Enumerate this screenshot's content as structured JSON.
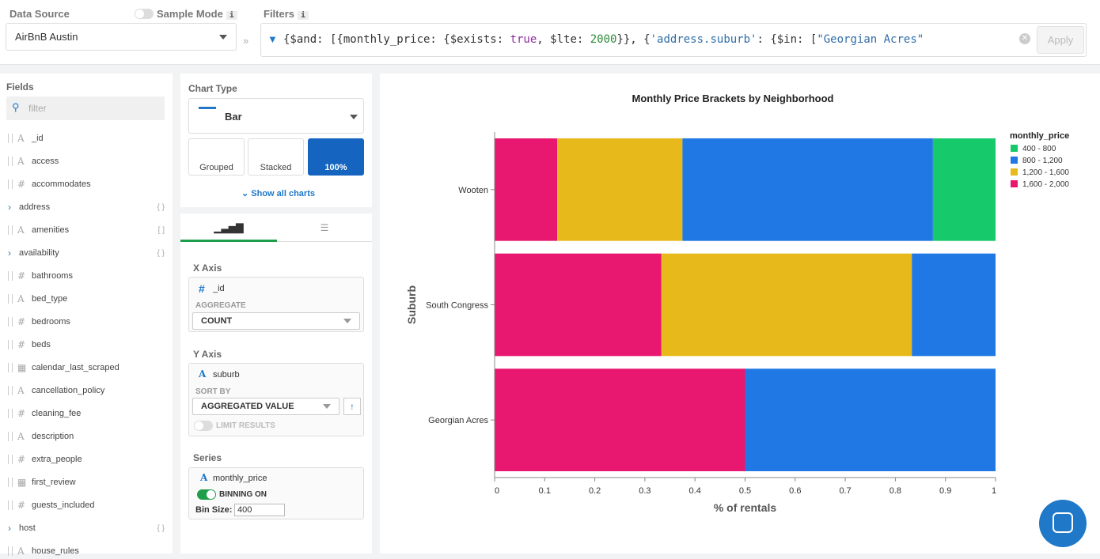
{
  "header": {
    "data_source_label": "Data Source",
    "sample_mode_label": "Sample Mode",
    "info": "i",
    "data_source_value": "AirBnB Austin",
    "filters_label": "Filters",
    "apply_label": "Apply",
    "filter_parts": [
      {
        "t": "{$and: [{monthly_price: {$exists: ",
        "c": "#333"
      },
      {
        "t": "true",
        "c": "#8e2a9e"
      },
      {
        "t": ", $lte: ",
        "c": "#333"
      },
      {
        "t": "2000",
        "c": "#2e8b3a"
      },
      {
        "t": "}}, {",
        "c": "#333"
      },
      {
        "t": "'address.suburb'",
        "c": "#2f6da8"
      },
      {
        "t": ": {$in: [",
        "c": "#333"
      },
      {
        "t": "\"Georgian Acres\"",
        "c": "#2f6da8"
      }
    ]
  },
  "fields": {
    "title": "Fields",
    "filter_placeholder": "filter",
    "items": [
      {
        "name": "_id",
        "type": "string"
      },
      {
        "name": "access",
        "type": "string"
      },
      {
        "name": "accommodates",
        "type": "number"
      },
      {
        "name": "address",
        "type": "object",
        "tag": "{ }"
      },
      {
        "name": "amenities",
        "type": "string",
        "tag": "[ ]"
      },
      {
        "name": "availability",
        "type": "object",
        "tag": "{ }"
      },
      {
        "name": "bathrooms",
        "type": "number"
      },
      {
        "name": "bed_type",
        "type": "string"
      },
      {
        "name": "bedrooms",
        "type": "number"
      },
      {
        "name": "beds",
        "type": "number"
      },
      {
        "name": "calendar_last_scraped",
        "type": "date"
      },
      {
        "name": "cancellation_policy",
        "type": "string"
      },
      {
        "name": "cleaning_fee",
        "type": "number"
      },
      {
        "name": "description",
        "type": "string"
      },
      {
        "name": "extra_people",
        "type": "number"
      },
      {
        "name": "first_review",
        "type": "date"
      },
      {
        "name": "guests_included",
        "type": "number"
      },
      {
        "name": "host",
        "type": "object",
        "tag": "{ }"
      },
      {
        "name": "house_rules",
        "type": "string"
      }
    ]
  },
  "chart_type": {
    "title": "Chart Type",
    "value": "Bar",
    "variants": [
      "Grouped",
      "Stacked",
      "100%"
    ],
    "selected": "100%",
    "show_all": "Show all charts"
  },
  "encode": {
    "x_axis": "X Axis",
    "x_field": "_id",
    "aggregate_label": "AGGREGATE",
    "aggregate_value": "COUNT",
    "y_axis": "Y Axis",
    "y_field": "suburb",
    "sort_label": "SORT BY",
    "sort_value": "AGGREGATED VALUE",
    "limit_label": "LIMIT RESULTS",
    "series": "Series",
    "series_field": "monthly_price",
    "binning_label": "BINNING ON",
    "bin_size_label": "Bin Size:",
    "bin_size": "400"
  },
  "colors": {
    "accent": "#1565c0"
  },
  "chart_data": {
    "type": "bar",
    "orientation": "horizontal",
    "stacking": "normalized",
    "title": "Monthly Price Brackets by Neighborhood",
    "xlabel": "% of rentals",
    "ylabel": "Suburb",
    "xlim": [
      0,
      1
    ],
    "xticks": [
      "0",
      "0.1",
      "0.2",
      "0.3",
      "0.4",
      "0.5",
      "0.6",
      "0.7",
      "0.8",
      "0.9",
      "1"
    ],
    "categories": [
      "Wooten",
      "South Congress",
      "Georgian Acres"
    ],
    "legend_title": "monthly_price",
    "legend_position": "right",
    "series": [
      {
        "name": "1,600 - 2,000",
        "color": "#e8176f",
        "values": [
          0.125,
          0.333,
          0.5
        ]
      },
      {
        "name": "1,200 - 1,600",
        "color": "#e8b91a",
        "values": [
          0.25,
          0.5,
          0
        ]
      },
      {
        "name": "800 - 1,200",
        "color": "#1f78e4",
        "values": [
          0.5,
          0.167,
          0.5
        ]
      },
      {
        "name": "400 - 800",
        "color": "#16c96a",
        "values": [
          0.125,
          0,
          0
        ]
      }
    ],
    "legend_order": [
      "400 - 800",
      "800 - 1,200",
      "1,200 - 1,600",
      "1,600 - 2,000"
    ]
  }
}
